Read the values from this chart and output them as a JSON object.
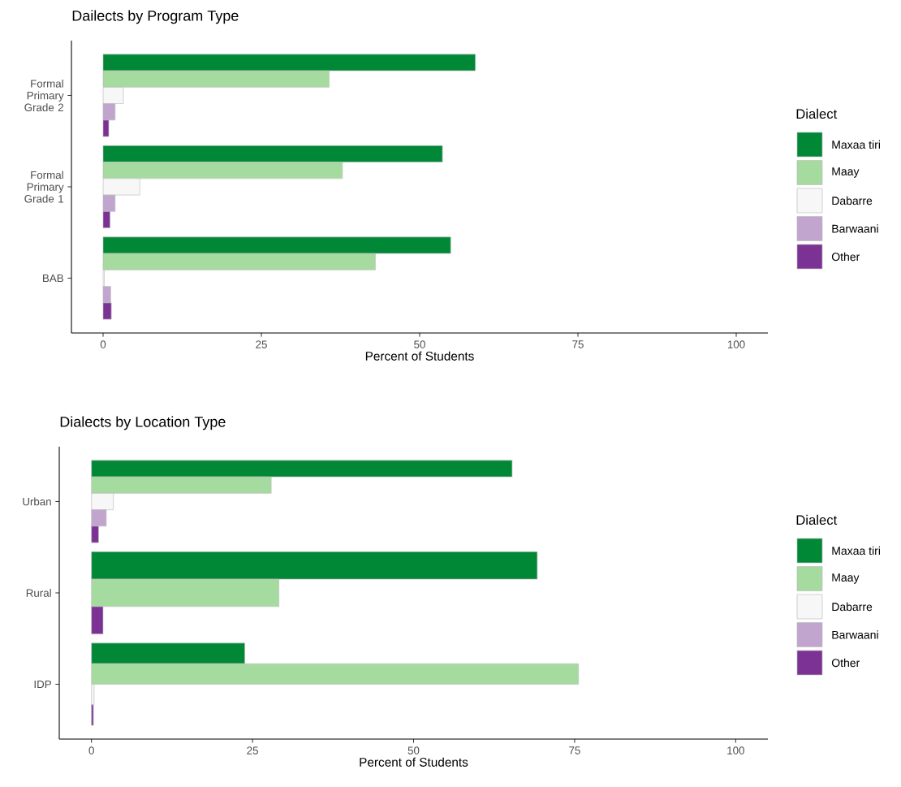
{
  "chart_data": [
    {
      "type": "bar",
      "orientation": "horizontal",
      "title": "Dailects by Program Type",
      "xlabel": "Percent of Students",
      "legend_title": "Dialect",
      "legend": "right",
      "categories": [
        "Formal Primary Grade 2",
        "Formal Primary Grade 1",
        "BAB"
      ],
      "series": [
        {
          "name": "Maxaa tiri",
          "color": "#008837",
          "values": [
            58.8,
            53.6,
            54.9
          ]
        },
        {
          "name": "Maay",
          "color": "#a6dba0",
          "values": [
            35.7,
            37.8,
            43.0
          ]
        },
        {
          "name": "Dabarre",
          "color": "#f7f7f7",
          "values": [
            3.2,
            5.8,
            0.2
          ]
        },
        {
          "name": "Barwaani",
          "color": "#c2a5cf",
          "values": [
            1.9,
            1.9,
            1.2
          ]
        },
        {
          "name": "Other",
          "color": "#7b3294",
          "values": [
            0.9,
            1.1,
            1.3
          ]
        }
      ],
      "xlim": [
        -5,
        105
      ],
      "xticks": [
        0,
        25,
        50,
        75,
        100
      ]
    },
    {
      "type": "bar",
      "orientation": "horizontal",
      "title": "Dialects by Location Type",
      "xlabel": "Percent of Students",
      "legend_title": "Dialect",
      "legend": "right",
      "categories": [
        "Urban",
        "Rural",
        "IDP"
      ],
      "series": [
        {
          "name": "Maxaa tiri",
          "color": "#008837",
          "values": [
            65.3,
            69.2,
            23.8
          ]
        },
        {
          "name": "Maay",
          "color": "#a6dba0",
          "values": [
            27.9,
            29.1,
            75.6
          ]
        },
        {
          "name": "Dabarre",
          "color": "#f7f7f7",
          "values": [
            3.4,
            null,
            0.4
          ]
        },
        {
          "name": "Barwaani",
          "color": "#c2a5cf",
          "values": [
            2.3,
            null,
            null
          ]
        },
        {
          "name": "Other",
          "color": "#7b3294",
          "values": [
            1.1,
            1.8,
            0.3
          ]
        }
      ],
      "xlim": [
        -5,
        105
      ],
      "xticks": [
        0,
        25,
        50,
        75,
        100
      ]
    }
  ]
}
